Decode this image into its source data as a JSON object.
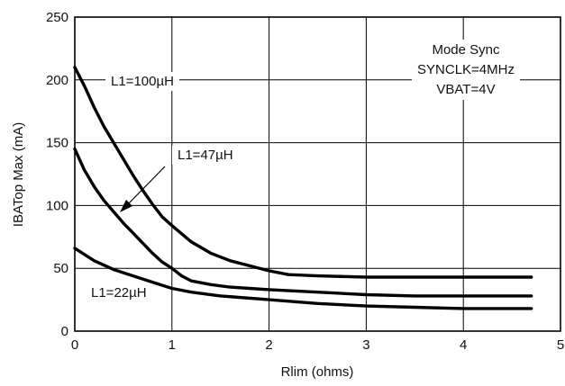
{
  "chart_data": {
    "type": "line",
    "title": "",
    "xlabel": "Rlim (ohms)",
    "ylabel": "IBATop Max (mA)",
    "xlim": [
      0,
      5
    ],
    "ylim": [
      0,
      250
    ],
    "x_ticks": [
      0,
      1,
      2,
      3,
      4,
      5
    ],
    "y_ticks": [
      0,
      50,
      100,
      150,
      200,
      250
    ],
    "grid": true,
    "annotation_lines": [
      "Mode Sync",
      "SYNCLK=4MHz",
      "VBAT=4V"
    ],
    "series": [
      {
        "name": "L1=100µH",
        "x": [
          0,
          0.1,
          0.2,
          0.3,
          0.4,
          0.5,
          0.6,
          0.7,
          0.8,
          0.9,
          1.0,
          1.2,
          1.4,
          1.6,
          1.8,
          2.0,
          2.2,
          2.5,
          3.0,
          3.5,
          4.0,
          4.7
        ],
        "y": [
          210,
          195,
          178,
          163,
          150,
          137,
          124,
          112,
          101,
          91,
          84,
          71,
          62,
          56,
          52,
          48,
          45,
          44,
          43,
          43,
          43,
          43
        ],
        "color": "#000000"
      },
      {
        "name": "L1=47µH",
        "x": [
          0,
          0.1,
          0.2,
          0.3,
          0.4,
          0.5,
          0.6,
          0.7,
          0.8,
          0.9,
          1.0,
          1.1,
          1.2,
          1.4,
          1.6,
          1.8,
          2.0,
          2.5,
          3.0,
          3.5,
          4.0,
          4.7
        ],
        "y": [
          145,
          128,
          115,
          104,
          95,
          86,
          78,
          70,
          62,
          55,
          50,
          44,
          40,
          37,
          35,
          34,
          33,
          31,
          29,
          28,
          28,
          28
        ],
        "color": "#000000"
      },
      {
        "name": "L1=22µH",
        "x": [
          0,
          0.2,
          0.4,
          0.6,
          0.8,
          1.0,
          1.2,
          1.5,
          2.0,
          2.5,
          3.0,
          3.5,
          4.0,
          4.7
        ],
        "y": [
          66,
          56,
          49,
          44,
          39,
          34,
          31,
          28,
          25,
          22,
          20,
          19,
          18,
          18
        ],
        "color": "#000000"
      }
    ],
    "labels": [
      {
        "text": "L1=100µH"
      },
      {
        "text": "L1=47µH"
      },
      {
        "text": "L1=22µH"
      }
    ]
  }
}
